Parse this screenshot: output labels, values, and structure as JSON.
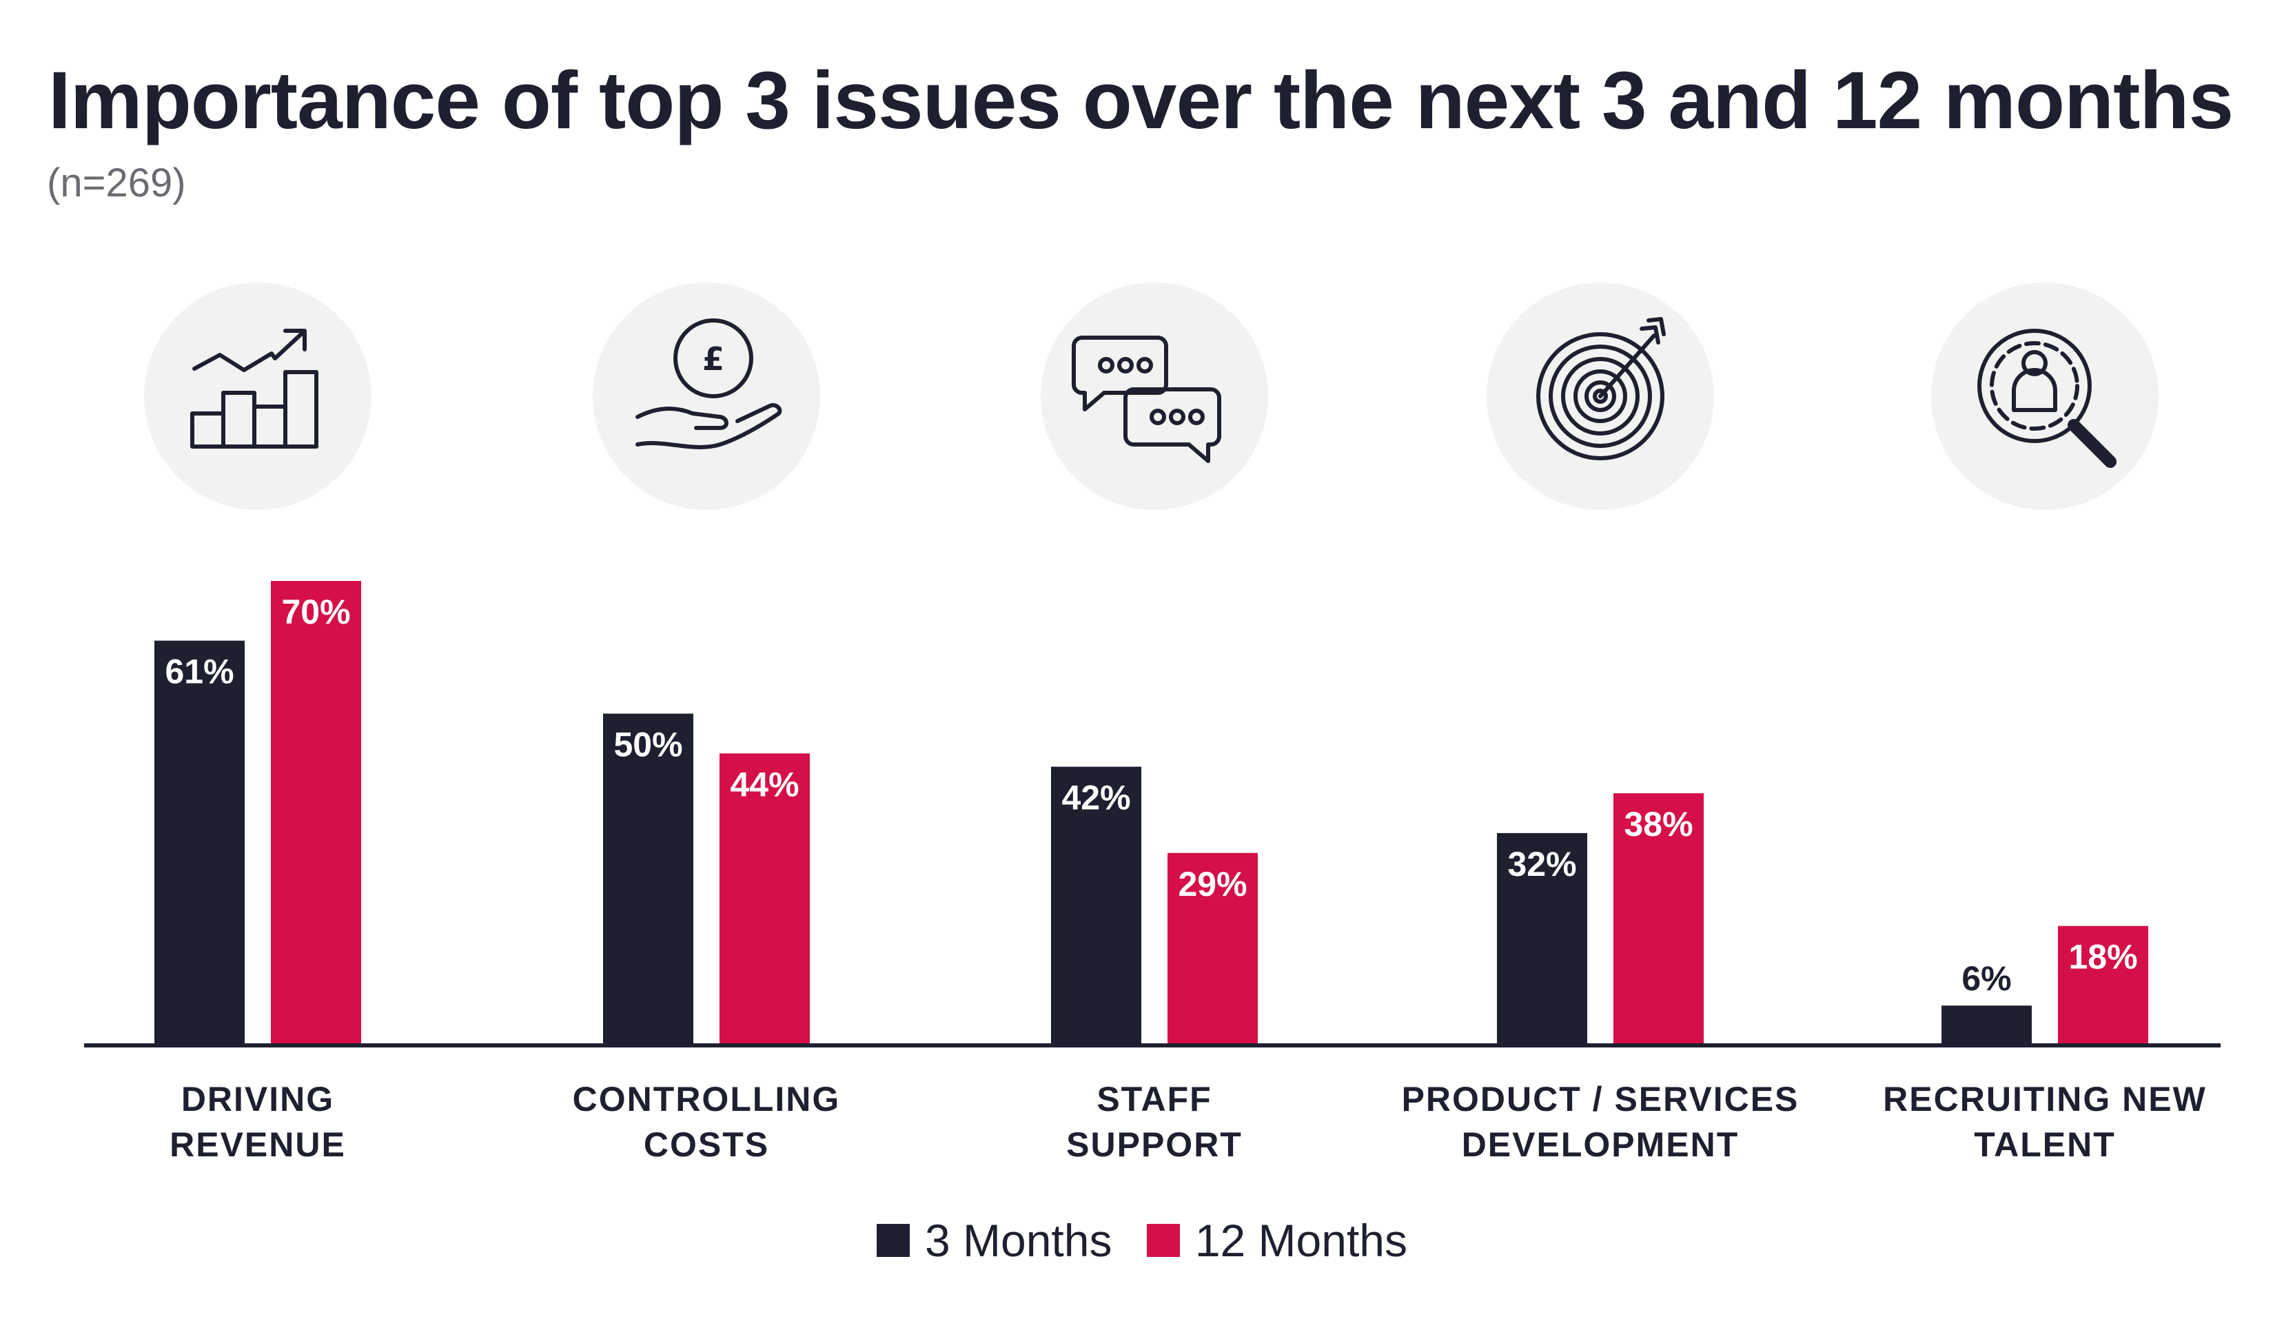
{
  "title": "Importance of top 3 issues over the next 3 and 12 months",
  "subtitle": "(n=269)",
  "colors": {
    "months3": "#1e2030",
    "months12": "#d50f47",
    "icon_bg": "#f2f2f2",
    "axis": "#1e2030"
  },
  "icons": [
    "growth-chart-icon",
    "pound-coin-hand-icon",
    "chat-bubbles-icon",
    "target-arrow-icon",
    "magnifier-person-icon"
  ],
  "legend": [
    {
      "label": "3 Months",
      "color": "#1e2030"
    },
    {
      "label": "12 Months",
      "color": "#d50f47"
    }
  ],
  "chart_data": {
    "type": "bar",
    "categories": [
      [
        "DRIVING",
        "REVENUE"
      ],
      [
        "CONTROLLING",
        "COSTS"
      ],
      [
        "STAFF",
        "SUPPORT"
      ],
      [
        "PRODUCT / SERVICES",
        "DEVELOPMENT"
      ],
      [
        "RECRUITING NEW",
        "TALENT"
      ]
    ],
    "series": [
      {
        "name": "3 Months",
        "values": [
          61,
          50,
          42,
          32,
          6
        ],
        "labels": [
          "61%",
          "50%",
          "42%",
          "32%",
          "6%"
        ]
      },
      {
        "name": "12 Months",
        "values": [
          70,
          44,
          29,
          38,
          18
        ],
        "labels": [
          "70%",
          "44%",
          "29%",
          "38%",
          "18%"
        ]
      }
    ],
    "ylim": [
      0,
      70
    ],
    "grid": false,
    "legend_position": "bottom-center"
  }
}
